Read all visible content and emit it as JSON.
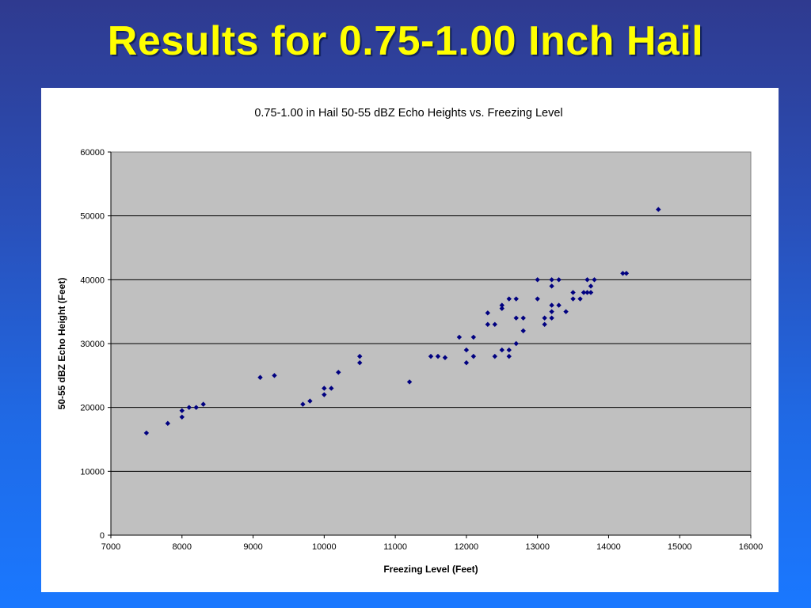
{
  "slide": {
    "title": "Results for 0.75-1.00 Inch Hail"
  },
  "colors": {
    "title_text": "#ffff00",
    "plot_background": "#c0c0c0",
    "marker": "#000080",
    "gridline": "#000000"
  },
  "chart_data": {
    "type": "scatter",
    "title": "0.75-1.00 in Hail 50-55 dBZ Echo Heights vs. Freezing Level",
    "xlabel": "Freezing Level (Feet)",
    "ylabel": "50-55 dBZ Echo Height (Feet)",
    "xlim": [
      7000,
      16000
    ],
    "ylim": [
      0,
      60000
    ],
    "xticks": [
      "7000",
      "8000",
      "9000",
      "10000",
      "11000",
      "12000",
      "13000",
      "14000",
      "15000",
      "16000"
    ],
    "yticks": [
      "0",
      "10000",
      "20000",
      "30000",
      "40000",
      "50000",
      "60000"
    ],
    "grid": "horizontal",
    "legend": "none",
    "marker": "diamond",
    "points": [
      [
        7500,
        16000
      ],
      [
        7800,
        17500
      ],
      [
        8000,
        18500
      ],
      [
        8000,
        19500
      ],
      [
        8100,
        20000
      ],
      [
        8200,
        20000
      ],
      [
        8300,
        20500
      ],
      [
        9100,
        24700
      ],
      [
        9300,
        25000
      ],
      [
        9700,
        20500
      ],
      [
        9800,
        21000
      ],
      [
        10000,
        22000
      ],
      [
        10000,
        23000
      ],
      [
        10100,
        23000
      ],
      [
        10200,
        25500
      ],
      [
        10500,
        27000
      ],
      [
        10500,
        28000
      ],
      [
        11200,
        24000
      ],
      [
        11500,
        28000
      ],
      [
        11600,
        28000
      ],
      [
        11700,
        27800
      ],
      [
        11900,
        31000
      ],
      [
        12000,
        27000
      ],
      [
        12000,
        29000
      ],
      [
        12100,
        28000
      ],
      [
        12100,
        31000
      ],
      [
        12300,
        33000
      ],
      [
        12300,
        34800
      ],
      [
        12400,
        28000
      ],
      [
        12400,
        33000
      ],
      [
        12500,
        29000
      ],
      [
        12500,
        35500
      ],
      [
        12500,
        36000
      ],
      [
        12600,
        28000
      ],
      [
        12600,
        29000
      ],
      [
        12600,
        37000
      ],
      [
        12700,
        30000
      ],
      [
        12700,
        34000
      ],
      [
        12700,
        37000
      ],
      [
        12800,
        32000
      ],
      [
        12800,
        34000
      ],
      [
        13000,
        37000
      ],
      [
        13000,
        40000
      ],
      [
        13100,
        33000
      ],
      [
        13100,
        34000
      ],
      [
        13200,
        34000
      ],
      [
        13200,
        35000
      ],
      [
        13200,
        36000
      ],
      [
        13200,
        39000
      ],
      [
        13200,
        40000
      ],
      [
        13300,
        36000
      ],
      [
        13300,
        40000
      ],
      [
        13400,
        35000
      ],
      [
        13500,
        37000
      ],
      [
        13500,
        38000
      ],
      [
        13600,
        37000
      ],
      [
        13650,
        38000
      ],
      [
        13700,
        38000
      ],
      [
        13700,
        40000
      ],
      [
        13750,
        38000
      ],
      [
        13750,
        39000
      ],
      [
        13800,
        40000
      ],
      [
        14200,
        41000
      ],
      [
        14250,
        41000
      ],
      [
        14700,
        51000
      ]
    ]
  }
}
